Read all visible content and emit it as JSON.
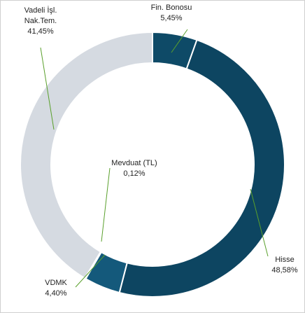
{
  "chart_data": {
    "type": "donut",
    "categories": [
      "Fin. Bonosu",
      "Hisse",
      "VDMK",
      "Mevduat (TL)",
      "Vadeli İşl. Nak.Tem."
    ],
    "values": [
      5.45,
      48.58,
      4.4,
      0.12,
      41.45
    ],
    "value_labels": [
      "5,45%",
      "48,58%",
      "4,40%",
      "0,12%",
      "41,45%"
    ],
    "colors": [
      "#0e4a67",
      "#0d4561",
      "#14597b",
      "#2d6f8d",
      "#d5dae1"
    ]
  }
}
